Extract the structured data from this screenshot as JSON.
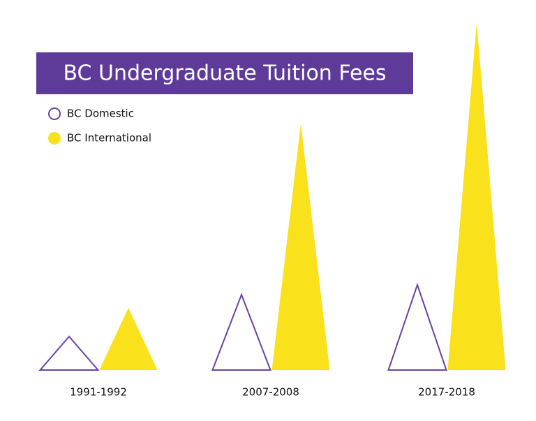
{
  "chart_data": {
    "type": "triangle",
    "title": "BC Undergraduate Tuition Fees",
    "categories": [
      "1991-1992",
      "2007-2008",
      "2017-2018"
    ],
    "series": [
      {
        "name": "BC Domestic",
        "color": "#6a42a0",
        "values": [
          48,
          108,
          122
        ]
      },
      {
        "name": "BC International",
        "color": "#f9e11b",
        "values": [
          89,
          353,
          498
        ]
      }
    ]
  }
}
